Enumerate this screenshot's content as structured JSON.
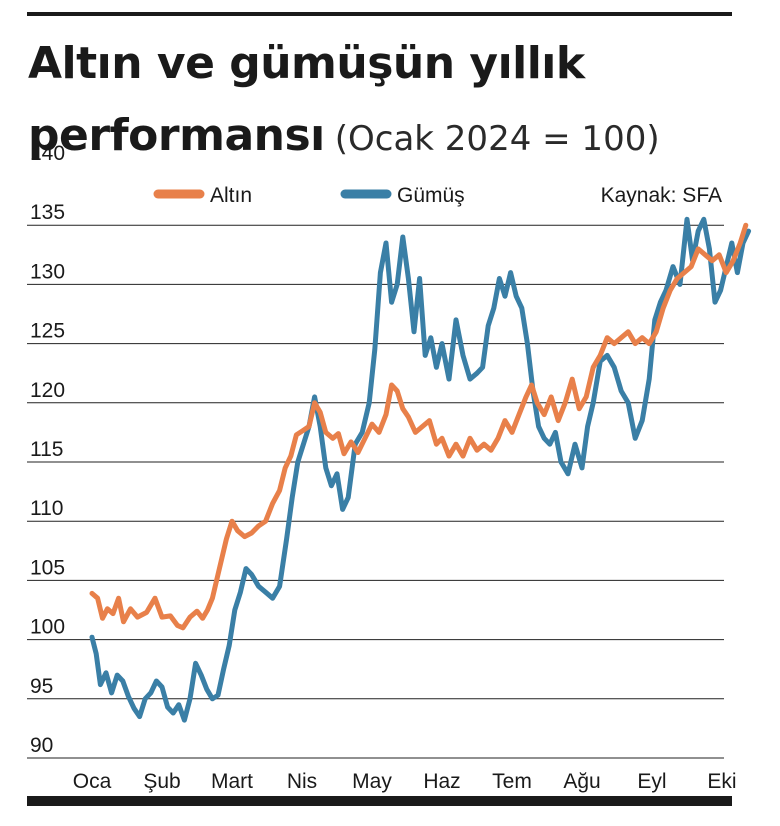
{
  "header": {
    "title_line1": "Altın ve gümüşün yıllık",
    "title_line2": "performansı",
    "subtitle": "(Ocak 2024 = 100)"
  },
  "source": "Kaynak: SFA",
  "colors": {
    "gold": "#e8804a",
    "silver": "#3a7fa6",
    "grid": "#222222"
  },
  "chart_data": {
    "type": "line",
    "title": "Altın ve gümüşün yıllık performansı",
    "subtitle": "(Ocak 2024 = 100)",
    "xlabel": "",
    "ylabel": "",
    "ylim": [
      90,
      140
    ],
    "yticks": [
      140,
      135,
      130,
      125,
      120,
      115,
      110,
      105,
      100,
      95,
      90
    ],
    "categories": [
      "Oca",
      "Şub",
      "Mart",
      "Nis",
      "May",
      "Haz",
      "Tem",
      "Ağu",
      "Eyl",
      "Eki"
    ],
    "x_range": [
      0,
      9.4
    ],
    "grid": true,
    "legend": "top",
    "series": [
      {
        "name": "Altın",
        "color": "#e8804a",
        "points": [
          [
            0,
            103.9
          ],
          [
            0.08,
            103.5
          ],
          [
            0.15,
            101.8
          ],
          [
            0.22,
            102.6
          ],
          [
            0.3,
            102.2
          ],
          [
            0.38,
            103.5
          ],
          [
            0.45,
            101.5
          ],
          [
            0.55,
            102.6
          ],
          [
            0.65,
            101.9
          ],
          [
            0.78,
            102.3
          ],
          [
            0.9,
            103.5
          ],
          [
            1.0,
            101.9
          ],
          [
            1.12,
            102.0
          ],
          [
            1.22,
            101.2
          ],
          [
            1.3,
            101.0
          ],
          [
            1.4,
            101.9
          ],
          [
            1.5,
            102.4
          ],
          [
            1.58,
            101.8
          ],
          [
            1.65,
            102.5
          ],
          [
            1.72,
            103.5
          ],
          [
            1.82,
            106.0
          ],
          [
            1.92,
            108.5
          ],
          [
            2.0,
            110.0
          ],
          [
            2.08,
            109.2
          ],
          [
            2.18,
            108.7
          ],
          [
            2.28,
            109.0
          ],
          [
            2.38,
            109.6
          ],
          [
            2.48,
            110.0
          ],
          [
            2.58,
            111.5
          ],
          [
            2.68,
            112.6
          ],
          [
            2.76,
            114.5
          ],
          [
            2.84,
            115.5
          ],
          [
            2.92,
            117.3
          ],
          [
            3.0,
            117.6
          ],
          [
            3.1,
            118.0
          ],
          [
            3.18,
            120.0
          ],
          [
            3.26,
            119.2
          ],
          [
            3.34,
            117.5
          ],
          [
            3.44,
            117.0
          ],
          [
            3.52,
            117.4
          ],
          [
            3.6,
            115.7
          ],
          [
            3.7,
            116.7
          ],
          [
            3.8,
            115.8
          ],
          [
            3.9,
            117.0
          ],
          [
            4.0,
            118.2
          ],
          [
            4.1,
            117.5
          ],
          [
            4.2,
            119.0
          ],
          [
            4.28,
            121.5
          ],
          [
            4.36,
            121.0
          ],
          [
            4.44,
            119.5
          ],
          [
            4.52,
            118.8
          ],
          [
            4.62,
            117.5
          ],
          [
            4.72,
            118.0
          ],
          [
            4.82,
            118.5
          ],
          [
            4.92,
            116.5
          ],
          [
            5.0,
            117.0
          ],
          [
            5.1,
            115.5
          ],
          [
            5.2,
            116.5
          ],
          [
            5.3,
            115.5
          ],
          [
            5.4,
            117.0
          ],
          [
            5.5,
            116.0
          ],
          [
            5.6,
            116.5
          ],
          [
            5.7,
            116.0
          ],
          [
            5.8,
            117.0
          ],
          [
            5.9,
            118.5
          ],
          [
            6.0,
            117.5
          ],
          [
            6.1,
            119.0
          ],
          [
            6.2,
            120.5
          ],
          [
            6.28,
            121.5
          ],
          [
            6.36,
            120.0
          ],
          [
            6.46,
            119.0
          ],
          [
            6.56,
            120.5
          ],
          [
            6.66,
            118.5
          ],
          [
            6.76,
            120.0
          ],
          [
            6.86,
            122.0
          ],
          [
            6.96,
            119.5
          ],
          [
            7.06,
            120.5
          ],
          [
            7.16,
            123.0
          ],
          [
            7.26,
            124.0
          ],
          [
            7.36,
            125.5
          ],
          [
            7.46,
            125.0
          ],
          [
            7.56,
            125.5
          ],
          [
            7.66,
            126.0
          ],
          [
            7.76,
            125.0
          ],
          [
            7.86,
            125.5
          ],
          [
            7.96,
            125.0
          ],
          [
            8.06,
            126.0
          ],
          [
            8.16,
            128.0
          ],
          [
            8.26,
            129.5
          ],
          [
            8.36,
            130.5
          ],
          [
            8.46,
            131.0
          ],
          [
            8.56,
            131.5
          ],
          [
            8.66,
            133.0
          ],
          [
            8.76,
            132.5
          ],
          [
            8.86,
            132.0
          ],
          [
            8.96,
            132.5
          ],
          [
            9.06,
            131.0
          ],
          [
            9.16,
            132.0
          ],
          [
            9.26,
            133.5
          ],
          [
            9.34,
            135.0
          ]
        ]
      },
      {
        "name": "Gümüş",
        "color": "#3a7fa6",
        "points": [
          [
            0,
            100.2
          ],
          [
            0.06,
            98.8
          ],
          [
            0.12,
            96.2
          ],
          [
            0.2,
            97.2
          ],
          [
            0.28,
            95.5
          ],
          [
            0.36,
            97.0
          ],
          [
            0.44,
            96.5
          ],
          [
            0.52,
            95.2
          ],
          [
            0.6,
            94.2
          ],
          [
            0.68,
            93.5
          ],
          [
            0.76,
            95.0
          ],
          [
            0.84,
            95.5
          ],
          [
            0.92,
            96.5
          ],
          [
            1.0,
            96.0
          ],
          [
            1.08,
            94.3
          ],
          [
            1.16,
            93.8
          ],
          [
            1.24,
            94.5
          ],
          [
            1.32,
            93.2
          ],
          [
            1.4,
            95.0
          ],
          [
            1.48,
            98.0
          ],
          [
            1.56,
            97.0
          ],
          [
            1.64,
            95.8
          ],
          [
            1.72,
            95.0
          ],
          [
            1.8,
            95.3
          ],
          [
            1.88,
            97.5
          ],
          [
            1.96,
            99.5
          ],
          [
            2.04,
            102.5
          ],
          [
            2.12,
            104.0
          ],
          [
            2.2,
            106.0
          ],
          [
            2.28,
            105.5
          ],
          [
            2.38,
            104.5
          ],
          [
            2.48,
            104.0
          ],
          [
            2.58,
            103.5
          ],
          [
            2.68,
            104.5
          ],
          [
            2.78,
            108.5
          ],
          [
            2.86,
            112.0
          ],
          [
            2.94,
            115.0
          ],
          [
            3.02,
            116.5
          ],
          [
            3.1,
            118.0
          ],
          [
            3.18,
            120.5
          ],
          [
            3.26,
            118.0
          ],
          [
            3.34,
            114.5
          ],
          [
            3.42,
            113.0
          ],
          [
            3.5,
            114.0
          ],
          [
            3.58,
            111.0
          ],
          [
            3.66,
            112.0
          ],
          [
            3.76,
            116.5
          ],
          [
            3.86,
            117.5
          ],
          [
            3.96,
            120.0
          ],
          [
            4.04,
            124.5
          ],
          [
            4.12,
            131.0
          ],
          [
            4.2,
            133.5
          ],
          [
            4.28,
            128.5
          ],
          [
            4.36,
            130.0
          ],
          [
            4.44,
            134.0
          ],
          [
            4.52,
            130.5
          ],
          [
            4.6,
            126.0
          ],
          [
            4.68,
            130.5
          ],
          [
            4.76,
            124.0
          ],
          [
            4.84,
            125.5
          ],
          [
            4.92,
            123.0
          ],
          [
            5.0,
            125.0
          ],
          [
            5.1,
            122.0
          ],
          [
            5.2,
            127.0
          ],
          [
            5.3,
            124.0
          ],
          [
            5.4,
            122.0
          ],
          [
            5.5,
            122.5
          ],
          [
            5.58,
            123.0
          ],
          [
            5.66,
            126.5
          ],
          [
            5.74,
            128.0
          ],
          [
            5.82,
            130.5
          ],
          [
            5.9,
            129.0
          ],
          [
            5.98,
            131.0
          ],
          [
            6.06,
            129.0
          ],
          [
            6.14,
            128.0
          ],
          [
            6.22,
            125.0
          ],
          [
            6.3,
            121.0
          ],
          [
            6.38,
            118.0
          ],
          [
            6.46,
            117.0
          ],
          [
            6.54,
            116.5
          ],
          [
            6.62,
            117.5
          ],
          [
            6.7,
            115.0
          ],
          [
            6.8,
            114.0
          ],
          [
            6.9,
            116.5
          ],
          [
            7.0,
            114.5
          ],
          [
            7.08,
            118.0
          ],
          [
            7.16,
            120.0
          ],
          [
            7.26,
            123.5
          ],
          [
            7.36,
            124.0
          ],
          [
            7.46,
            123.0
          ],
          [
            7.56,
            121.0
          ],
          [
            7.66,
            120.0
          ],
          [
            7.76,
            117.0
          ],
          [
            7.86,
            118.5
          ],
          [
            7.96,
            122.0
          ],
          [
            8.04,
            127.0
          ],
          [
            8.12,
            128.5
          ],
          [
            8.2,
            129.5
          ],
          [
            8.3,
            131.5
          ],
          [
            8.4,
            130.0
          ],
          [
            8.5,
            135.5
          ],
          [
            8.58,
            132.0
          ],
          [
            8.66,
            134.5
          ],
          [
            8.74,
            135.5
          ],
          [
            8.82,
            133.0
          ],
          [
            8.9,
            128.5
          ],
          [
            8.98,
            129.5
          ],
          [
            9.06,
            131.5
          ],
          [
            9.14,
            133.5
          ],
          [
            9.22,
            131.0
          ],
          [
            9.3,
            133.5
          ],
          [
            9.38,
            134.5
          ]
        ]
      }
    ]
  }
}
